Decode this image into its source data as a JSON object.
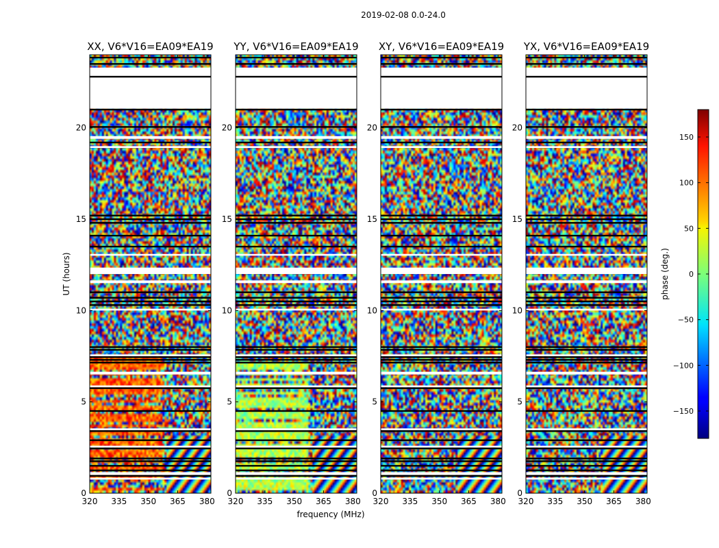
{
  "chart_data": {
    "type": "heatmap",
    "title": "2019-02-08 0.0-24.0",
    "xlabel": "frequency (MHz)",
    "ylabel": "UT (hours)",
    "xlim": [
      320,
      382
    ],
    "ylim": [
      0,
      24
    ],
    "xticks": [
      "320",
      "335",
      "350",
      "365",
      "380"
    ],
    "yticks": [
      "0",
      "5",
      "10",
      "15",
      "20"
    ],
    "panels": [
      {
        "title": "XX, V6*V16=EA09*EA19"
      },
      {
        "title": "YY, V6*V16=EA09*EA19"
      },
      {
        "title": "XY, V6*V16=EA09*EA19"
      },
      {
        "title": "YX, V6*V16=EA09*EA19"
      }
    ],
    "colorbar": {
      "label": "phase (deg.)",
      "range": [
        -180,
        180
      ],
      "ticks": [
        "150",
        "100",
        "50",
        "0",
        "−50",
        "−100",
        "−150"
      ],
      "colormap": "jet"
    },
    "blank_bands_hours": [
      [
        22.0,
        23.3
      ],
      [
        21.05,
        22.05
      ],
      [
        19.4,
        19.55
      ],
      [
        18.9,
        19.0
      ],
      [
        13.0,
        13.1
      ],
      [
        12.0,
        12.35
      ],
      [
        11.5,
        11.65
      ],
      [
        10.0,
        10.1
      ],
      [
        7.5,
        7.6
      ],
      [
        6.5,
        6.65
      ],
      [
        5.8,
        5.9
      ],
      [
        3.45,
        3.55
      ],
      [
        2.5,
        2.6
      ],
      [
        1.0,
        1.15
      ],
      [
        0.75,
        0.85
      ]
    ],
    "flagged_rows_hours": [
      23.85,
      23.5,
      22.8,
      21.0,
      20.05,
      19.2,
      15.2,
      15.0,
      14.8,
      14.1,
      13.5,
      11.0,
      10.7,
      10.5,
      10.3,
      8.0,
      7.85,
      7.45,
      7.3,
      7.15,
      5.75,
      4.5,
      3.4,
      2.9,
      2.45,
      1.9,
      1.75,
      1.5,
      1.25,
      0.95
    ]
  }
}
